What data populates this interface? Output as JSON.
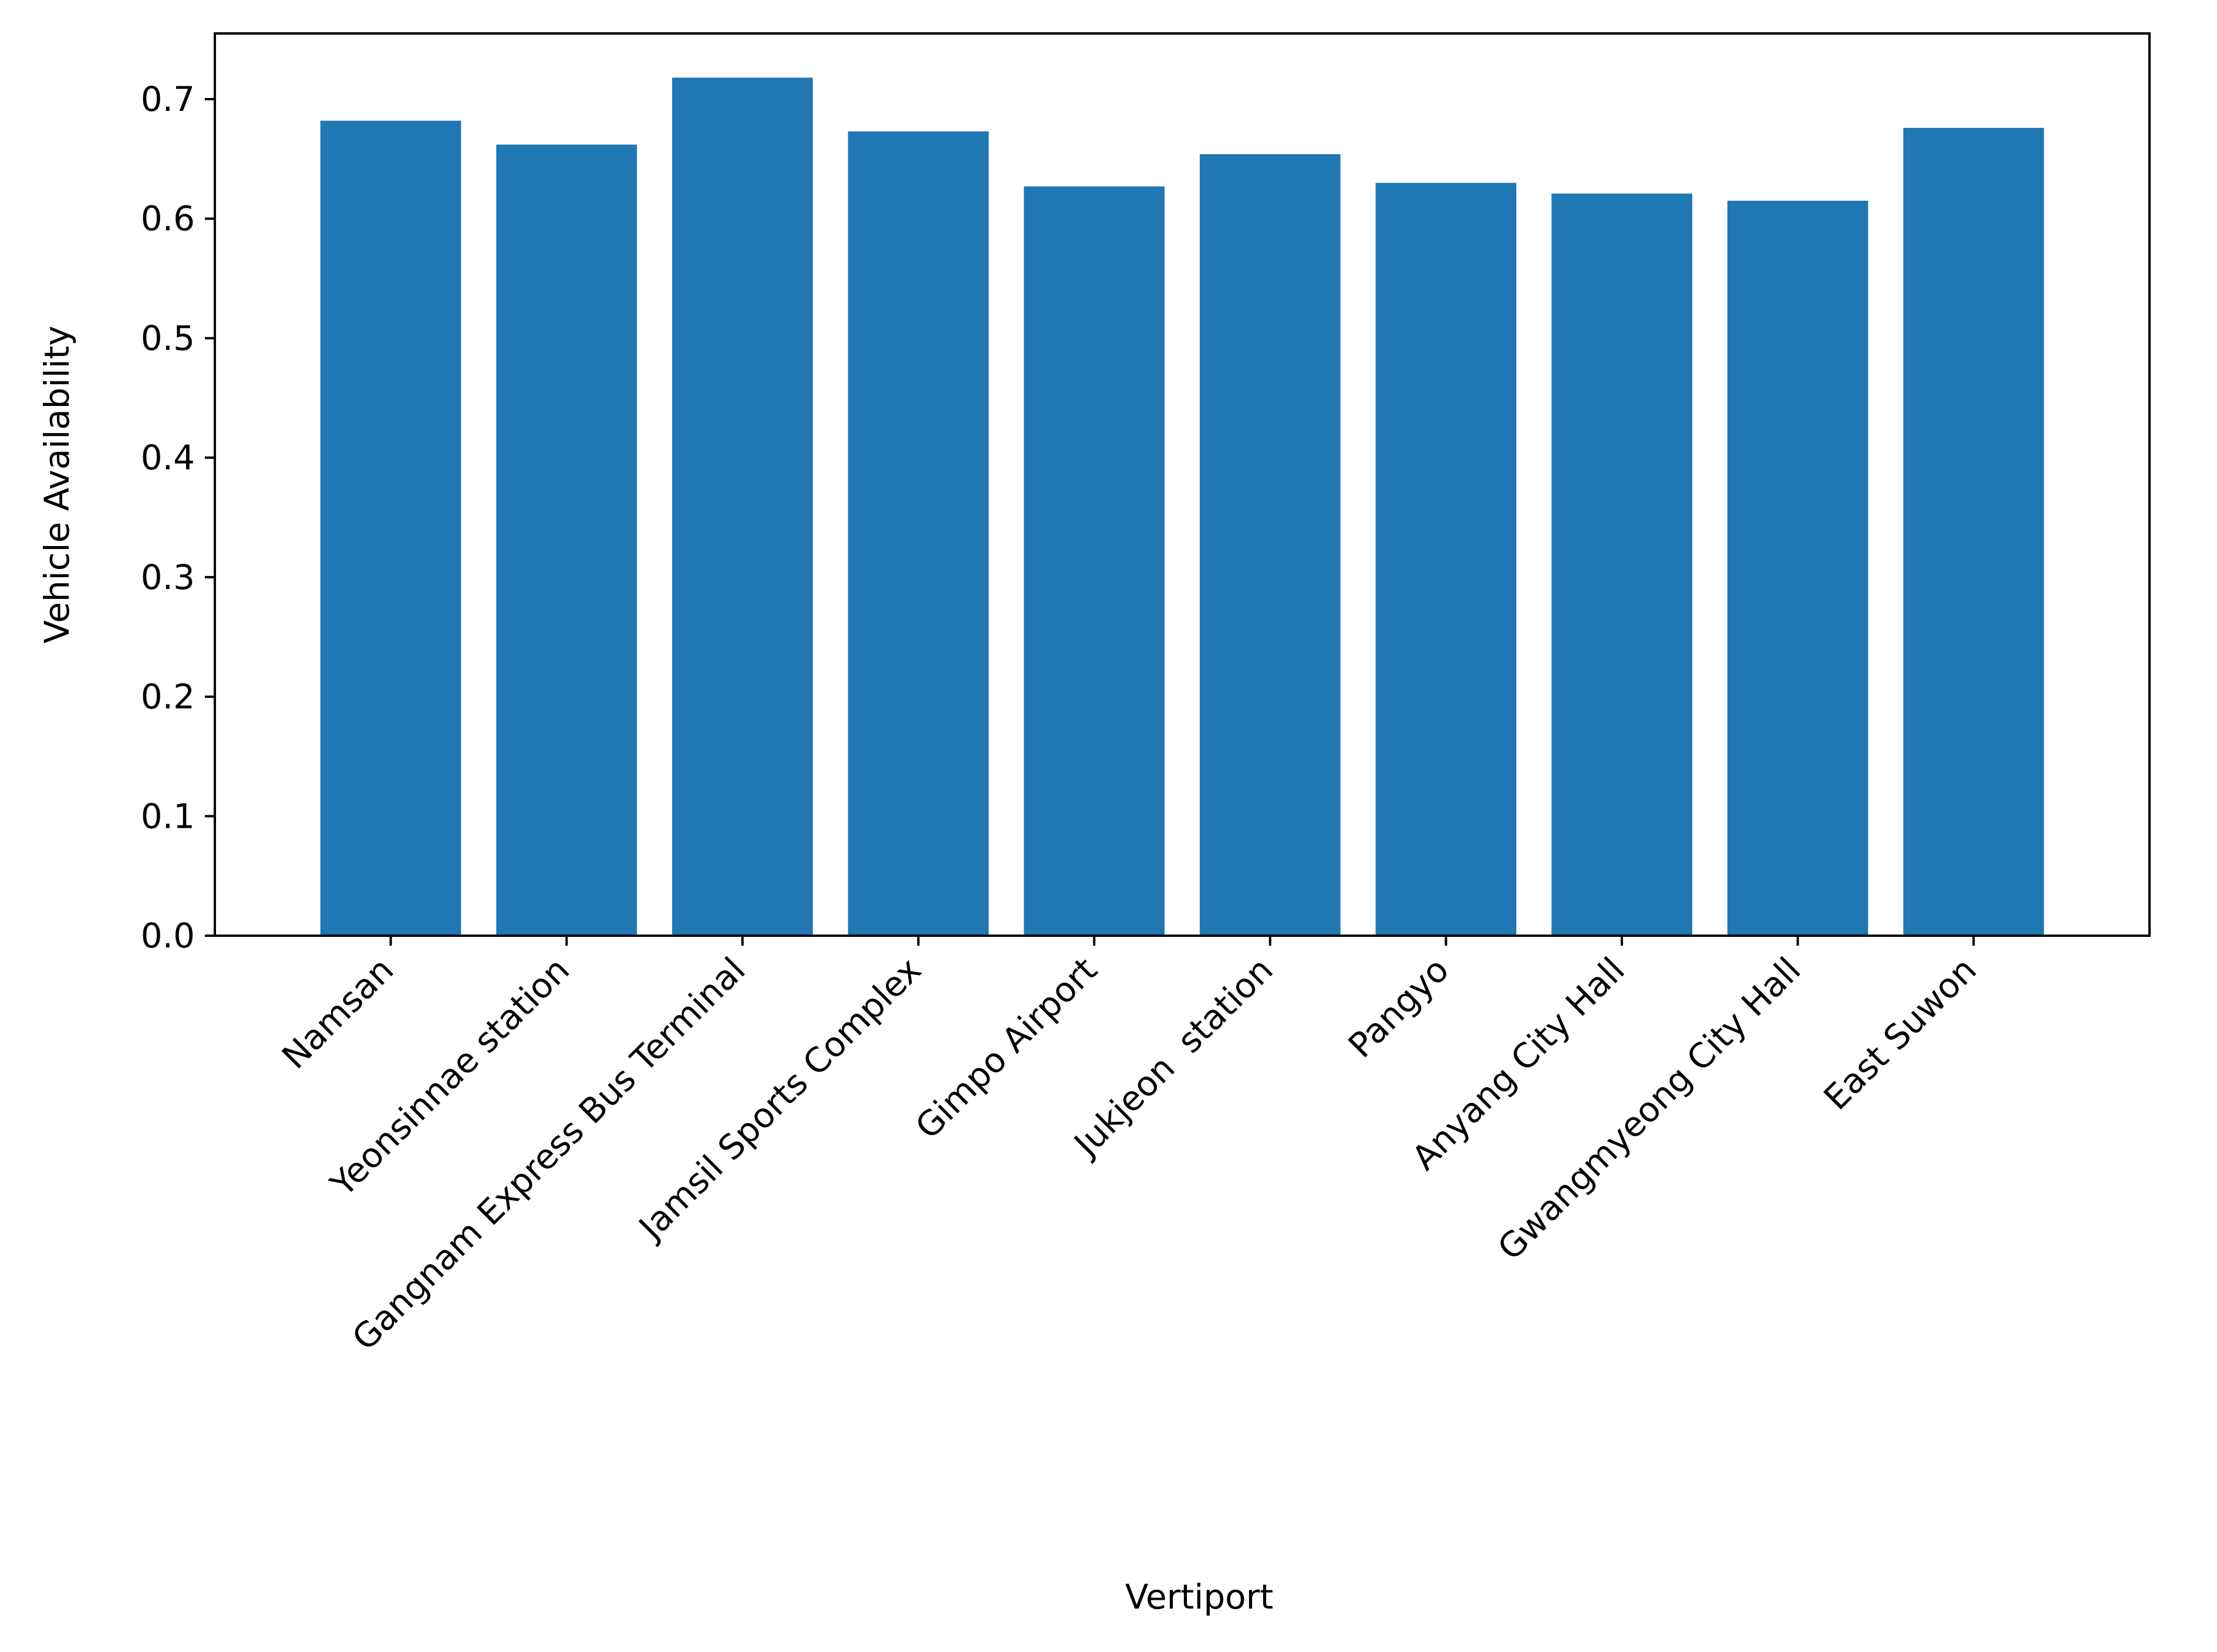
{
  "chart_data": {
    "type": "bar",
    "title": "",
    "xlabel": "Vertiport",
    "ylabel": "Vehicle Availability",
    "categories": [
      "Namsan",
      "Yeonsinnae station",
      "Gangnam Express Bus Terminal",
      "Jamsil Sports Complex",
      "Gimpo Airport",
      "Jukjeon  station",
      "Pangyo",
      "Anyang City Hall",
      "Gwangmyeong City Hall",
      "East Suwon"
    ],
    "values": [
      0.682,
      0.662,
      0.718,
      0.673,
      0.627,
      0.654,
      0.63,
      0.621,
      0.615,
      0.676
    ],
    "ylim": [
      0,
      0.755
    ],
    "yticks": [
      "0.0",
      "0.1",
      "0.2",
      "0.3",
      "0.4",
      "0.5",
      "0.6",
      "0.7"
    ],
    "grid": false,
    "bar_color": "#1f77b4"
  }
}
